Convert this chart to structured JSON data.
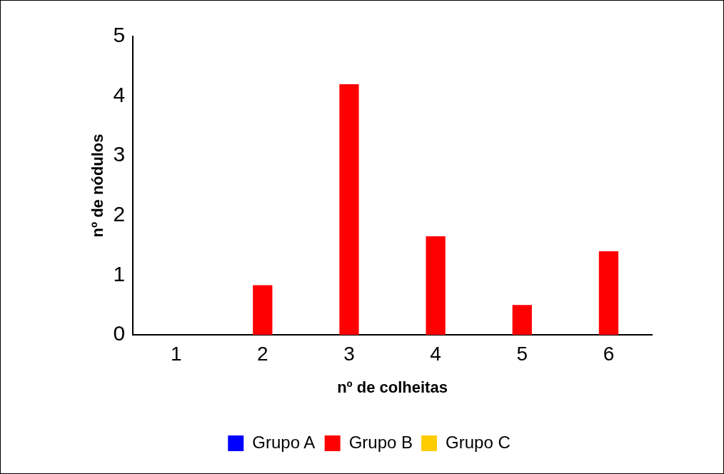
{
  "chart_data": {
    "type": "bar",
    "xlabel": "nº de colheitas",
    "ylabel": "nº de nódulos",
    "categories": [
      "1",
      "2",
      "3",
      "4",
      "5",
      "6"
    ],
    "series": [
      {
        "name": "Grupo A",
        "color": "#0000ff",
        "values": [
          0,
          0,
          0,
          0,
          0,
          0
        ]
      },
      {
        "name": "Grupo B",
        "color": "#ff0000",
        "values": [
          0,
          0.83,
          4.2,
          1.65,
          0.5,
          1.4
        ]
      },
      {
        "name": "Grupo C",
        "color": "#ffcc00",
        "values": [
          0,
          0,
          0,
          0,
          0,
          0
        ]
      }
    ],
    "ylim": [
      0,
      5
    ],
    "yticks": [
      0,
      1,
      2,
      3,
      4,
      5
    ],
    "grid": false,
    "legend": "bottom"
  }
}
